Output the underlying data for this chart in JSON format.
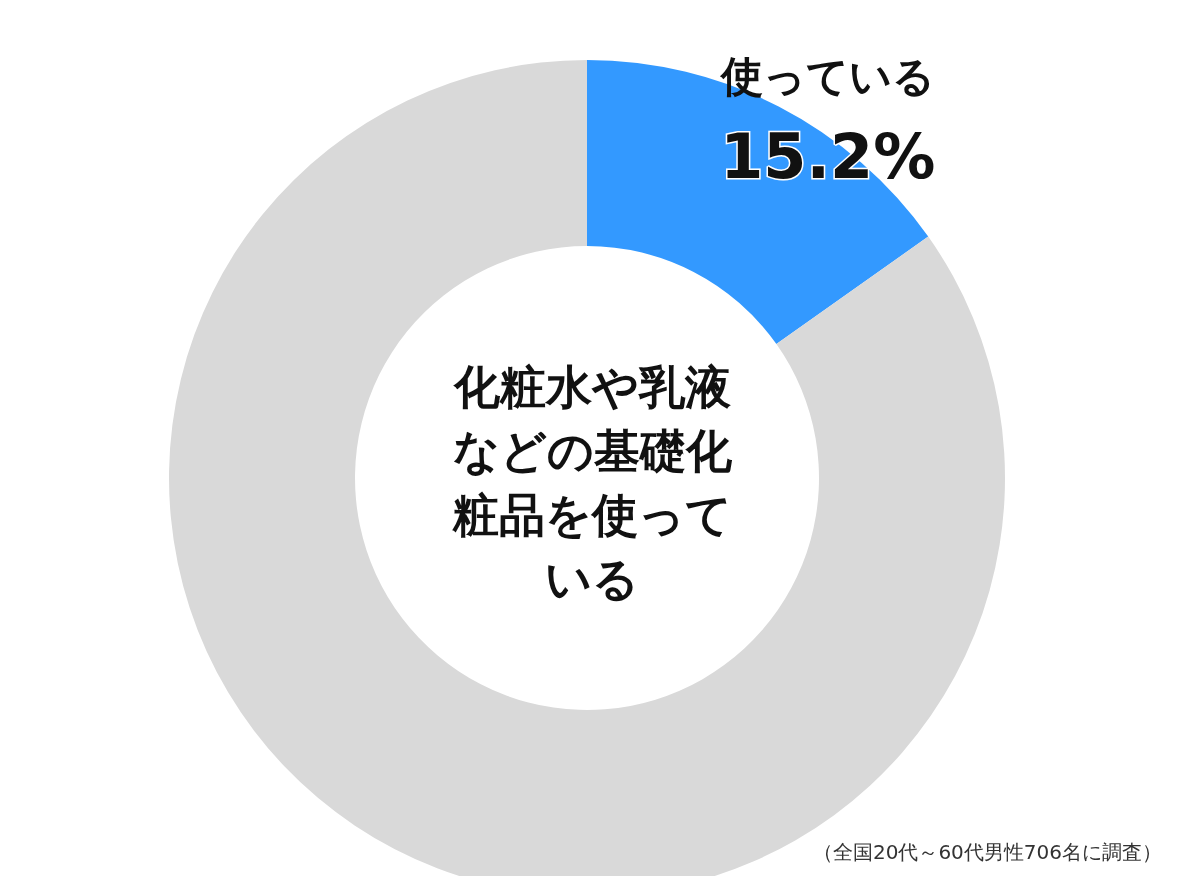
{
  "chart_data": {
    "type": "donut",
    "title": "化粧水や乳液などの基礎化粧品を使っている",
    "categories": [
      "使っている",
      null
    ],
    "values": [
      15.2,
      84.8
    ],
    "colors": [
      "#3399ff",
      "#d9d9d9"
    ],
    "value_labels": [
      "15.2%",
      null
    ],
    "annotations": [
      "（全国20代～60代男性706名に調査）"
    ]
  }
}
